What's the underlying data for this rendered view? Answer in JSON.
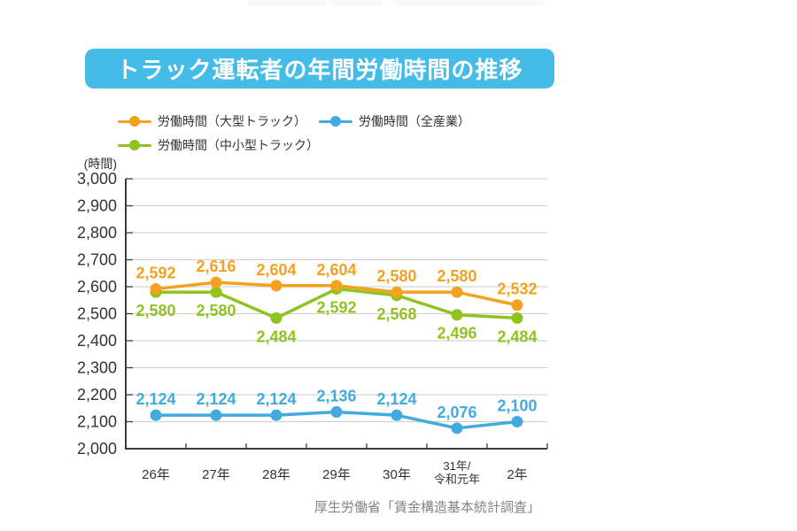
{
  "title": {
    "text": "トラック運転者の年間労働時間の推移",
    "bg_color": "#45BCE8",
    "text_color": "#ffffff"
  },
  "source": "厚生労働省「賃金構造基本統計調査」",
  "chart_data": {
    "type": "line",
    "title": "トラック運転者の年間労働時間の推移",
    "unit_label": "(時間)",
    "categories": [
      "26年",
      "27年",
      "28年",
      "29年",
      "30年",
      "31年/\n令和元年",
      "2年"
    ],
    "series": [
      {
        "name": "労働時間（大型トラック）",
        "color": "#F2A21F",
        "values": [
          2592,
          2616,
          2604,
          2604,
          2580,
          2580,
          2532
        ],
        "label_position": "above"
      },
      {
        "name": "労働時間（全産業）",
        "color": "#41AADE",
        "values": [
          2124,
          2124,
          2124,
          2136,
          2124,
          2076,
          2100
        ],
        "label_position": "above"
      },
      {
        "name": "労働時間（中小型トラック）",
        "color": "#8FC320",
        "values": [
          2580,
          2580,
          2484,
          2592,
          2568,
          2496,
          2484
        ],
        "label_position": "below"
      }
    ],
    "ylim": [
      2000,
      3000
    ],
    "ytick_step": 100,
    "grid": true,
    "legend_position": "top",
    "axis_color": "#3a3a3a",
    "grid_color": "#cccccc",
    "tick_label_color": "#333333"
  }
}
